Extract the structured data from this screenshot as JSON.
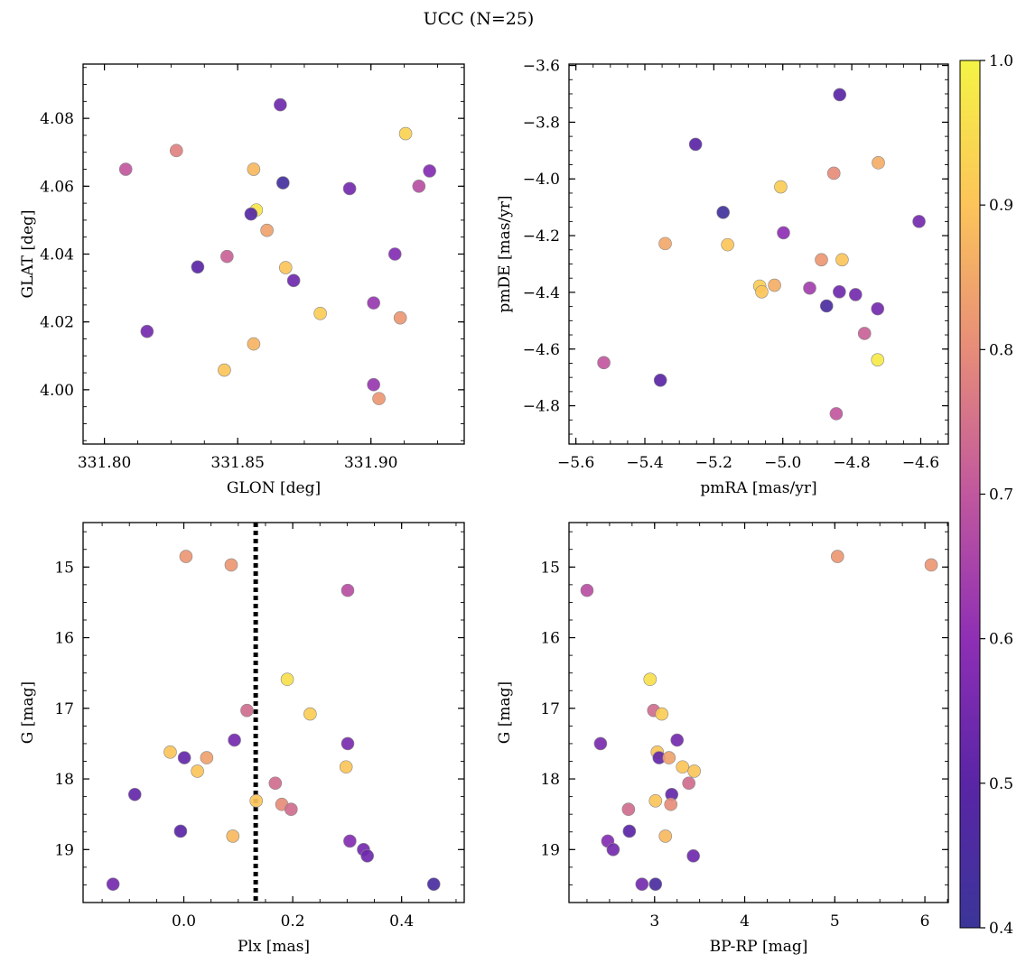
{
  "figure_title": "UCC (N=25)",
  "colorbar": {
    "min": 0.4,
    "max": 1.0,
    "ticks": [
      "0.4",
      "0.5",
      "0.6",
      "0.7",
      "0.8",
      "0.9",
      "1.0"
    ],
    "colormap": "plasma"
  },
  "chart_data": [
    {
      "type": "scatter",
      "xlabel": "GLON [deg]",
      "ylabel": "GLAT [deg]",
      "xlim": [
        331.792,
        331.935
      ],
      "ylim": [
        3.984,
        4.096
      ],
      "xticks": [
        "331.80",
        "331.85",
        "331.90"
      ],
      "yticks": [
        "4.00",
        "4.02",
        "4.04",
        "4.06",
        "4.08"
      ],
      "points": [
        [
          331.808,
          4.065,
          0.7
        ],
        [
          331.827,
          4.0705,
          0.78
        ],
        [
          331.866,
          4.084,
          0.54
        ],
        [
          331.856,
          4.065,
          0.88
        ],
        [
          331.867,
          4.061,
          0.43
        ],
        [
          331.857,
          4.053,
          0.97
        ],
        [
          331.855,
          4.0518,
          0.48
        ],
        [
          331.861,
          4.047,
          0.84
        ],
        [
          331.913,
          4.0755,
          0.93
        ],
        [
          331.922,
          4.0645,
          0.58
        ],
        [
          331.918,
          4.06,
          0.68
        ],
        [
          331.892,
          4.0593,
          0.55
        ],
        [
          331.846,
          4.0393,
          0.72
        ],
        [
          331.835,
          4.0362,
          0.5
        ],
        [
          331.871,
          4.0322,
          0.54
        ],
        [
          331.868,
          4.036,
          0.9
        ],
        [
          331.909,
          4.04,
          0.58
        ],
        [
          331.816,
          4.0172,
          0.55
        ],
        [
          331.881,
          4.0225,
          0.92
        ],
        [
          331.901,
          4.0256,
          0.62
        ],
        [
          331.911,
          4.0212,
          0.82
        ],
        [
          331.856,
          4.0135,
          0.87
        ],
        [
          331.845,
          4.0058,
          0.9
        ],
        [
          331.901,
          4.0015,
          0.62
        ],
        [
          331.903,
          3.9974,
          0.82
        ]
      ]
    },
    {
      "type": "scatter",
      "xlabel": "pmRA [mas/yr]",
      "ylabel": "pmDE [mas/yr]",
      "xlim": [
        -5.62,
        -4.52
      ],
      "ylim": [
        -4.935,
        -3.595
      ],
      "xticks": [
        "−5.6",
        "−5.4",
        "−5.2",
        "−5.0",
        "−4.8",
        "−4.6"
      ],
      "yticks": [
        "−4.8",
        "−4.6",
        "−4.4",
        "−4.2",
        "−4.0",
        "−3.8",
        "−3.6"
      ],
      "points": [
        [
          -4.835,
          -3.703,
          0.5
        ],
        [
          -5.253,
          -3.878,
          0.5
        ],
        [
          -4.723,
          -3.943,
          0.86
        ],
        [
          -4.852,
          -3.98,
          0.8
        ],
        [
          -5.006,
          -4.028,
          0.92
        ],
        [
          -5.173,
          -4.118,
          0.42
        ],
        [
          -4.605,
          -4.15,
          0.55
        ],
        [
          -4.998,
          -4.19,
          0.6
        ],
        [
          -5.341,
          -4.228,
          0.85
        ],
        [
          -5.16,
          -4.232,
          0.9
        ],
        [
          -4.888,
          -4.285,
          0.82
        ],
        [
          -4.828,
          -4.285,
          0.9
        ],
        [
          -5.067,
          -4.378,
          0.92
        ],
        [
          -5.061,
          -4.398,
          0.9
        ],
        [
          -5.024,
          -4.375,
          0.86
        ],
        [
          -4.922,
          -4.385,
          0.64
        ],
        [
          -4.836,
          -4.398,
          0.54
        ],
        [
          -4.789,
          -4.408,
          0.55
        ],
        [
          -4.873,
          -4.448,
          0.45
        ],
        [
          -4.725,
          -4.458,
          0.55
        ],
        [
          -4.763,
          -4.545,
          0.72
        ],
        [
          -4.725,
          -4.638,
          0.98
        ],
        [
          -5.519,
          -4.648,
          0.7
        ],
        [
          -5.355,
          -4.71,
          0.5
        ],
        [
          -4.845,
          -4.828,
          0.7
        ]
      ]
    },
    {
      "type": "scatter",
      "xlabel": "Plx [mas]",
      "ylabel": "G [mag]",
      "xlim": [
        -0.185,
        0.515
      ],
      "ylim": [
        19.75,
        14.37
      ],
      "xticks": [
        "0.0",
        "0.2",
        "0.4"
      ],
      "yticks": [
        "15",
        "16",
        "17",
        "18",
        "19"
      ],
      "vline": 0.132,
      "points": [
        [
          0.004,
          14.85,
          0.82
        ],
        [
          0.087,
          14.97,
          0.82
        ],
        [
          0.301,
          15.33,
          0.68
        ],
        [
          0.19,
          16.59,
          0.96
        ],
        [
          0.116,
          17.03,
          0.74
        ],
        [
          0.232,
          17.08,
          0.92
        ],
        [
          0.093,
          17.45,
          0.55
        ],
        [
          0.301,
          17.5,
          0.56
        ],
        [
          -0.025,
          17.62,
          0.9
        ],
        [
          0.001,
          17.7,
          0.52
        ],
        [
          0.042,
          17.7,
          0.84
        ],
        [
          0.298,
          17.83,
          0.9
        ],
        [
          0.025,
          17.89,
          0.9
        ],
        [
          0.168,
          18.06,
          0.74
        ],
        [
          -0.09,
          18.22,
          0.52
        ],
        [
          0.133,
          18.31,
          0.9
        ],
        [
          0.18,
          18.36,
          0.8
        ],
        [
          0.197,
          18.43,
          0.74
        ],
        [
          -0.006,
          18.74,
          0.5
        ],
        [
          0.09,
          18.81,
          0.88
        ],
        [
          0.305,
          18.88,
          0.58
        ],
        [
          0.33,
          19.0,
          0.55
        ],
        [
          0.337,
          19.09,
          0.54
        ],
        [
          -0.13,
          19.49,
          0.55
        ],
        [
          0.459,
          19.49,
          0.45
        ]
      ]
    },
    {
      "type": "scatter",
      "xlabel": "BP-RP [mag]",
      "ylabel": "G [mag]",
      "xlim": [
        2.05,
        6.26
      ],
      "ylim": [
        19.75,
        14.37
      ],
      "xticks": [
        "3",
        "4",
        "5",
        "6"
      ],
      "yticks": [
        "15",
        "16",
        "17",
        "18",
        "19"
      ],
      "points": [
        [
          5.03,
          14.85,
          0.82
        ],
        [
          6.07,
          14.97,
          0.82
        ],
        [
          2.25,
          15.33,
          0.68
        ],
        [
          2.95,
          16.59,
          0.96
        ],
        [
          2.99,
          17.03,
          0.74
        ],
        [
          3.08,
          17.08,
          0.92
        ],
        [
          3.25,
          17.45,
          0.55
        ],
        [
          2.4,
          17.5,
          0.56
        ],
        [
          3.03,
          17.62,
          0.9
        ],
        [
          3.05,
          17.7,
          0.52
        ],
        [
          3.16,
          17.7,
          0.84
        ],
        [
          3.31,
          17.83,
          0.9
        ],
        [
          3.44,
          17.89,
          0.9
        ],
        [
          3.38,
          18.06,
          0.74
        ],
        [
          3.19,
          18.22,
          0.52
        ],
        [
          3.01,
          18.31,
          0.9
        ],
        [
          3.18,
          18.36,
          0.8
        ],
        [
          2.71,
          18.43,
          0.74
        ],
        [
          2.72,
          18.74,
          0.5
        ],
        [
          3.12,
          18.81,
          0.88
        ],
        [
          2.48,
          18.88,
          0.58
        ],
        [
          2.54,
          19.0,
          0.55
        ],
        [
          3.43,
          19.09,
          0.54
        ],
        [
          2.86,
          19.49,
          0.55
        ],
        [
          3.01,
          19.49,
          0.45
        ]
      ]
    }
  ]
}
